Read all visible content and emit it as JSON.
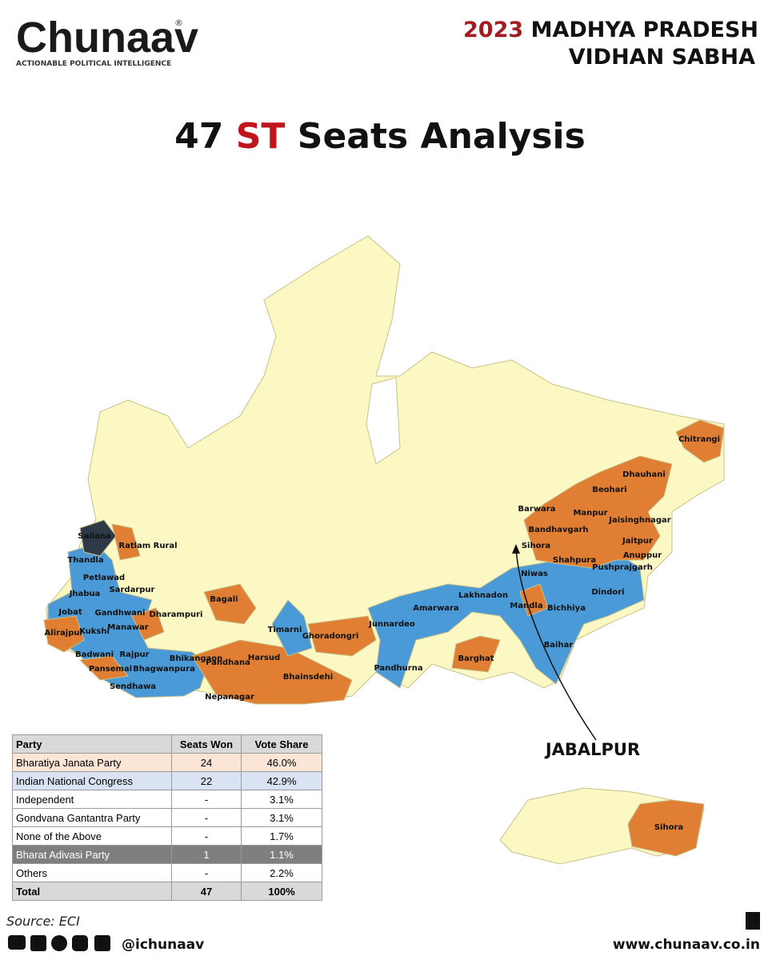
{
  "header": {
    "logo": "Chunaav",
    "logo_mark": "®",
    "tagline": "ACTIONABLE POLITICAL INTELLIGENCE",
    "year": "2023",
    "state": "MADHYA PRADESH",
    "house": "VIDHAN SABHA"
  },
  "title": {
    "count": "47",
    "highlight": "ST",
    "rest": "Seats Analysis"
  },
  "map": {
    "labels": [
      "Sailana",
      "Ratlam Rural",
      "Thandla",
      "Petlawad",
      "Sardarpur",
      "Jhabua",
      "Jobat",
      "Gandhwani",
      "Dharampuri",
      "Manawar",
      "Alirajpur",
      "Kukshi",
      "Badwani",
      "Rajpur",
      "Bhikangaon",
      "Pandhana",
      "Pansemal",
      "Bhagwanpura",
      "Sendhawa",
      "Nepanagar",
      "Harsud",
      "Bagali",
      "Timarni",
      "Ghoradongri",
      "Bhainsdehi",
      "Junnardeo",
      "Amarwara",
      "Lakhnadon",
      "Pandhurna",
      "Barghat",
      "Mandla",
      "Bichhiya",
      "Baihar",
      "Niwas",
      "Sihora",
      "Shahpura",
      "Dindori",
      "Pushprajgarh",
      "Anuppur",
      "Jaitpur",
      "Jaisinghnagar",
      "Manpur",
      "Bandhavgarh",
      "Barwara",
      "Beohari",
      "Dhauhani",
      "Chitrangi"
    ],
    "inset_title": "JABALPUR",
    "inset_label": "Sihora"
  },
  "table": {
    "header": [
      "Party",
      "Seats Won",
      "Vote Share"
    ],
    "rows": [
      [
        "Bharatiya Janata Party",
        "24",
        "46.0%"
      ],
      [
        "Indian National Congress",
        "22",
        "42.9%"
      ],
      [
        "Independent",
        "-",
        "3.1%"
      ],
      [
        "Gondvana Gantantra Party",
        "-",
        "3.1%"
      ],
      [
        "None of the Above",
        "-",
        "1.7%"
      ],
      [
        "Bharat Adivasi Party",
        "1",
        "1.1%"
      ],
      [
        "Others",
        "-",
        "2.2%"
      ]
    ],
    "total": [
      "Total",
      "47",
      "100%"
    ]
  },
  "footer": {
    "source": "Source: ECI",
    "handle": "@ichunaav",
    "website": "www.chunaav.co.in"
  }
}
